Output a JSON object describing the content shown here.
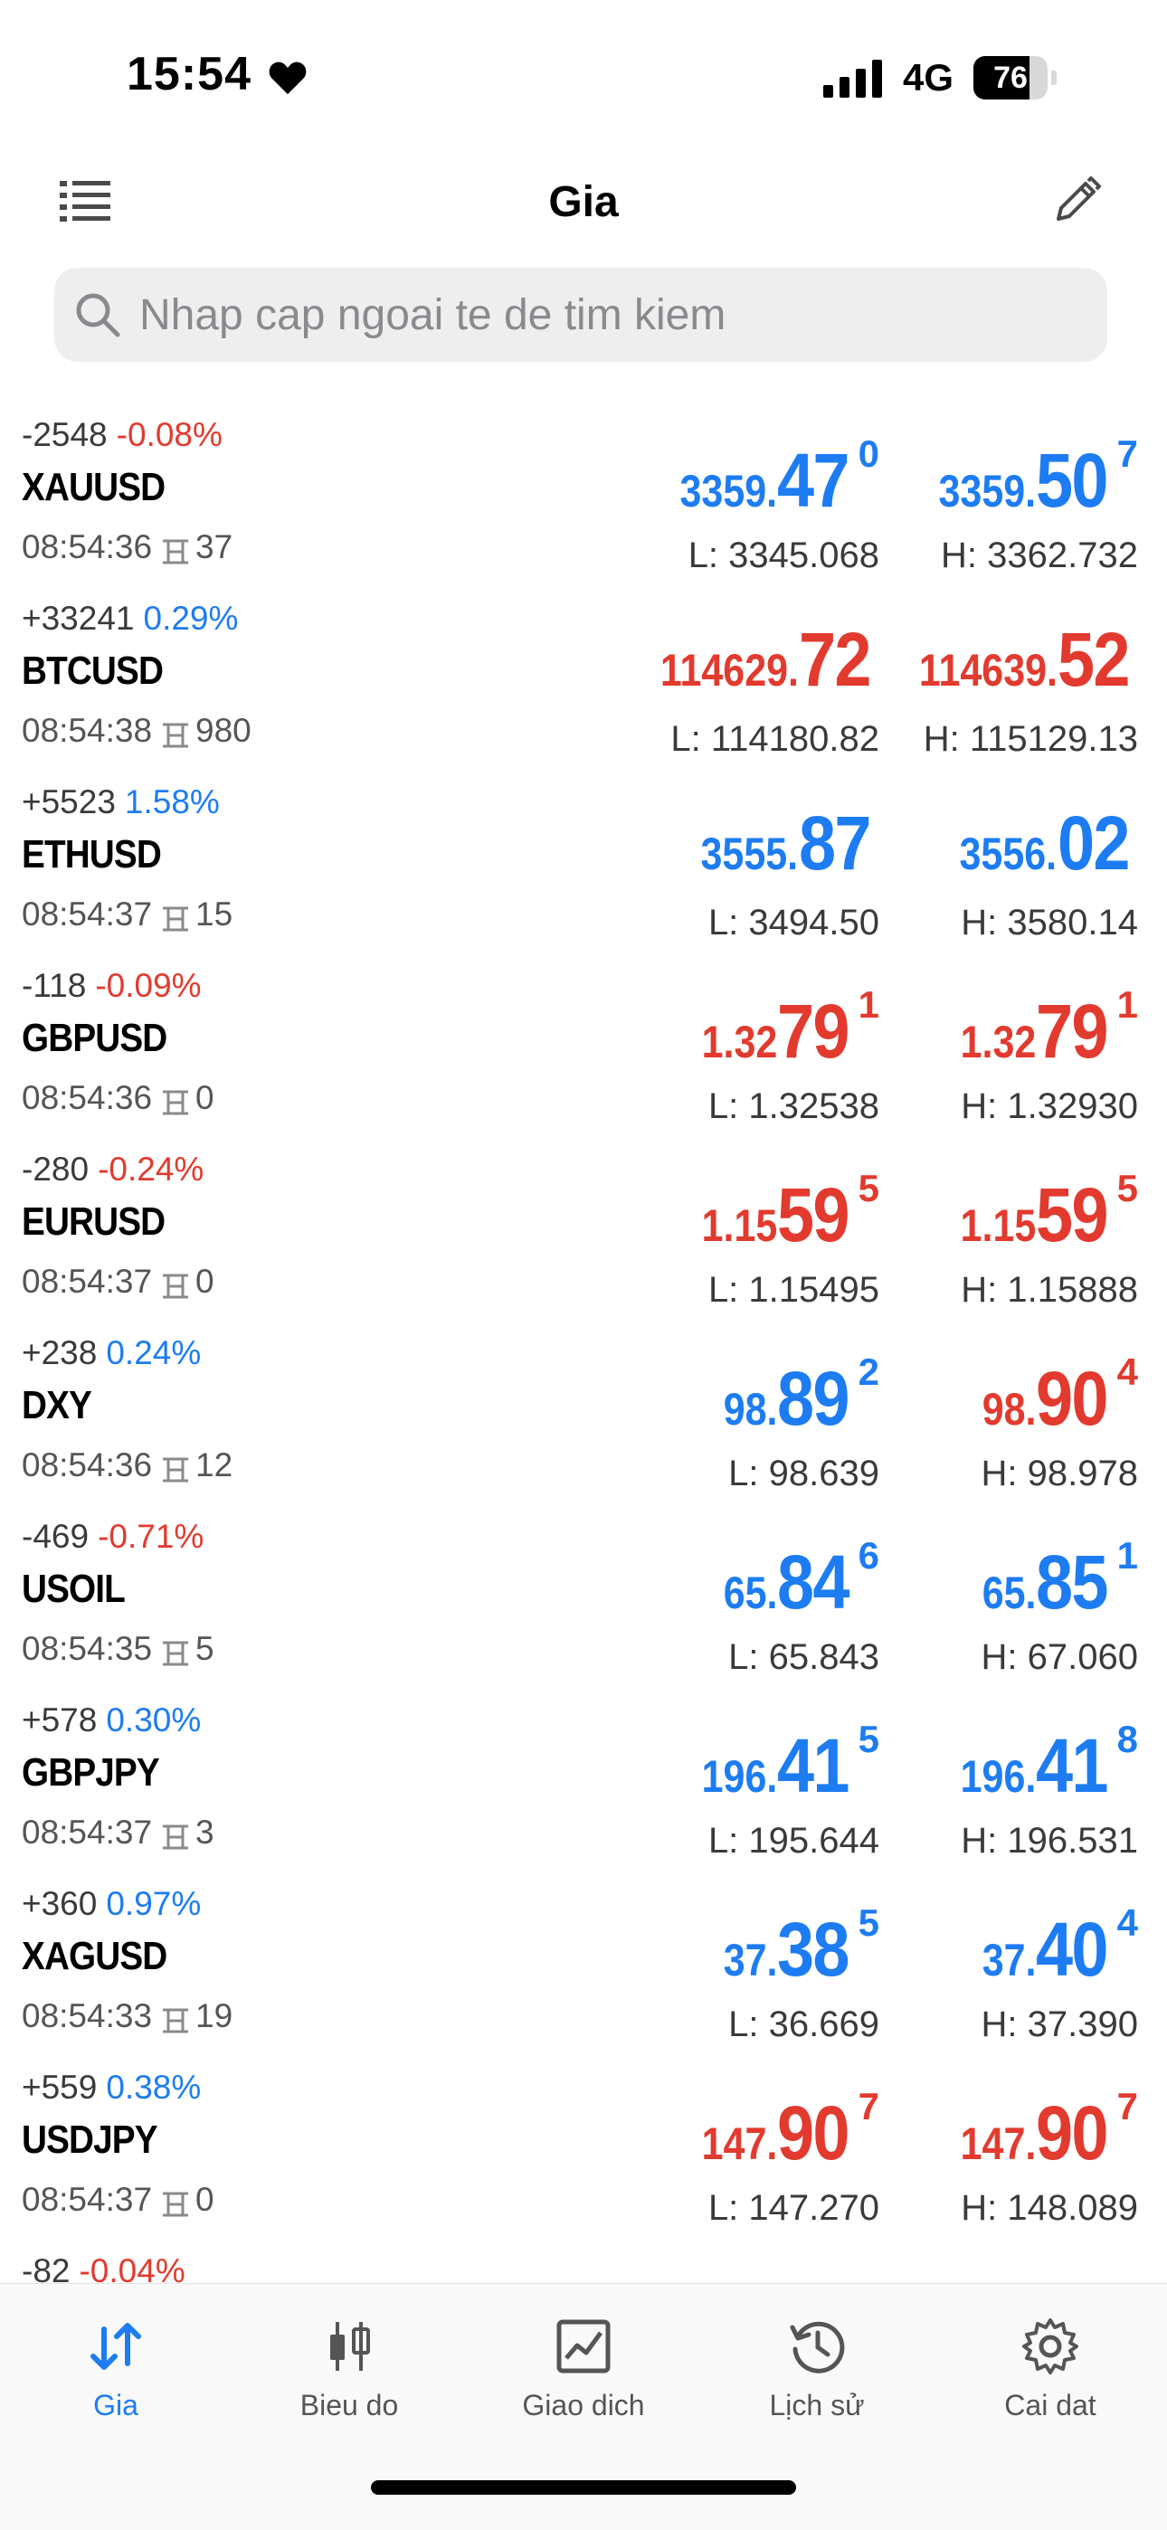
{
  "status_bar": {
    "time": "15:54",
    "network": "4G",
    "battery": "76",
    "battery_level": 0.76
  },
  "header": {
    "title": "Gia"
  },
  "search": {
    "placeholder": "Nhap cap ngoai te de tim kiem"
  },
  "colors": {
    "up": "#1d7cf2",
    "down": "#e23a2e"
  },
  "quotes": [
    {
      "change_points": "-2548",
      "change_pct": "-0.08%",
      "pct_dir": "down",
      "symbol": "XAUUSD",
      "time": "08:54:36",
      "spread": "37",
      "price_dir": "up",
      "bid": {
        "small": "3359.",
        "big": "47",
        "sup": "0",
        "dir": "up"
      },
      "ask": {
        "small": "3359.",
        "big": "50",
        "sup": "7",
        "dir": "up"
      },
      "low": "L: 3345.068",
      "high": "H: 3362.732"
    },
    {
      "change_points": "+33241",
      "change_pct": "0.29%",
      "pct_dir": "up",
      "symbol": "BTCUSD",
      "time": "08:54:38",
      "spread": "980",
      "bid": {
        "small": "114629.",
        "big": "72",
        "sup": "",
        "dir": "down"
      },
      "ask": {
        "small": "114639.",
        "big": "52",
        "sup": "",
        "dir": "down"
      },
      "low": "L: 114180.82",
      "high": "H: 115129.13"
    },
    {
      "change_points": "+5523",
      "change_pct": "1.58%",
      "pct_dir": "up",
      "symbol": "ETHUSD",
      "time": "08:54:37",
      "spread": "15",
      "bid": {
        "small": "3555.",
        "big": "87",
        "sup": "",
        "dir": "up"
      },
      "ask": {
        "small": "3556.",
        "big": "02",
        "sup": "",
        "dir": "up"
      },
      "low": "L: 3494.50",
      "high": "H: 3580.14"
    },
    {
      "change_points": "-118",
      "change_pct": "-0.09%",
      "pct_dir": "down",
      "symbol": "GBPUSD",
      "time": "08:54:36",
      "spread": "0",
      "bid": {
        "small": "1.32",
        "big": "79",
        "sup": "1",
        "dir": "down"
      },
      "ask": {
        "small": "1.32",
        "big": "79",
        "sup": "1",
        "dir": "down"
      },
      "low": "L: 1.32538",
      "high": "H: 1.32930"
    },
    {
      "change_points": "-280",
      "change_pct": "-0.24%",
      "pct_dir": "down",
      "symbol": "EURUSD",
      "time": "08:54:37",
      "spread": "0",
      "bid": {
        "small": "1.15",
        "big": "59",
        "sup": "5",
        "dir": "down"
      },
      "ask": {
        "small": "1.15",
        "big": "59",
        "sup": "5",
        "dir": "down"
      },
      "low": "L: 1.15495",
      "high": "H: 1.15888"
    },
    {
      "change_points": "+238",
      "change_pct": "0.24%",
      "pct_dir": "up",
      "symbol": "DXY",
      "time": "08:54:36",
      "spread": "12",
      "bid": {
        "small": "98.",
        "big": "89",
        "sup": "2",
        "dir": "up"
      },
      "ask": {
        "small": "98.",
        "big": "90",
        "sup": "4",
        "dir": "down"
      },
      "low": "L: 98.639",
      "high": "H: 98.978"
    },
    {
      "change_points": "-469",
      "change_pct": "-0.71%",
      "pct_dir": "down",
      "symbol": "USOIL",
      "time": "08:54:35",
      "spread": "5",
      "bid": {
        "small": "65.",
        "big": "84",
        "sup": "6",
        "dir": "up"
      },
      "ask": {
        "small": "65.",
        "big": "85",
        "sup": "1",
        "dir": "up"
      },
      "low": "L: 65.843",
      "high": "H: 67.060"
    },
    {
      "change_points": "+578",
      "change_pct": "0.30%",
      "pct_dir": "up",
      "symbol": "GBPJPY",
      "time": "08:54:37",
      "spread": "3",
      "bid": {
        "small": "196.",
        "big": "41",
        "sup": "5",
        "dir": "up"
      },
      "ask": {
        "small": "196.",
        "big": "41",
        "sup": "8",
        "dir": "up"
      },
      "low": "L: 195.644",
      "high": "H: 196.531"
    },
    {
      "change_points": "+360",
      "change_pct": "0.97%",
      "pct_dir": "up",
      "symbol": "XAGUSD",
      "time": "08:54:33",
      "spread": "19",
      "bid": {
        "small": "37.",
        "big": "38",
        "sup": "5",
        "dir": "up"
      },
      "ask": {
        "small": "37.",
        "big": "40",
        "sup": "4",
        "dir": "up"
      },
      "low": "L: 36.669",
      "high": "H: 37.390"
    },
    {
      "change_points": "+559",
      "change_pct": "0.38%",
      "pct_dir": "up",
      "symbol": "USDJPY",
      "time": "08:54:37",
      "spread": "0",
      "bid": {
        "small": "147.",
        "big": "90",
        "sup": "7",
        "dir": "down"
      },
      "ask": {
        "small": "147.",
        "big": "90",
        "sup": "7",
        "dir": "down"
      },
      "low": "L: 147.270",
      "high": "H: 148.089"
    },
    {
      "change_points": "-82",
      "change_pct": "-0.04%",
      "pct_dir": "down",
      "symbol": "",
      "time": "",
      "spread": "",
      "bid": {
        "small": "",
        "big": "",
        "sup": "",
        "dir": "down"
      },
      "ask": {
        "small": "",
        "big": "",
        "sup": "",
        "dir": "down"
      },
      "low": "",
      "high": ""
    }
  ],
  "tabs": [
    {
      "label": "Gia",
      "icon": "quotes-arrows-icon",
      "active": true
    },
    {
      "label": "Bieu do",
      "icon": "candlestick-chart-icon",
      "active": false
    },
    {
      "label": "Giao dich",
      "icon": "trade-chart-icon",
      "active": false
    },
    {
      "label": "Lịch sử",
      "icon": "history-clock-icon",
      "active": false
    },
    {
      "label": "Cai dat",
      "icon": "settings-gear-icon",
      "active": false
    }
  ]
}
